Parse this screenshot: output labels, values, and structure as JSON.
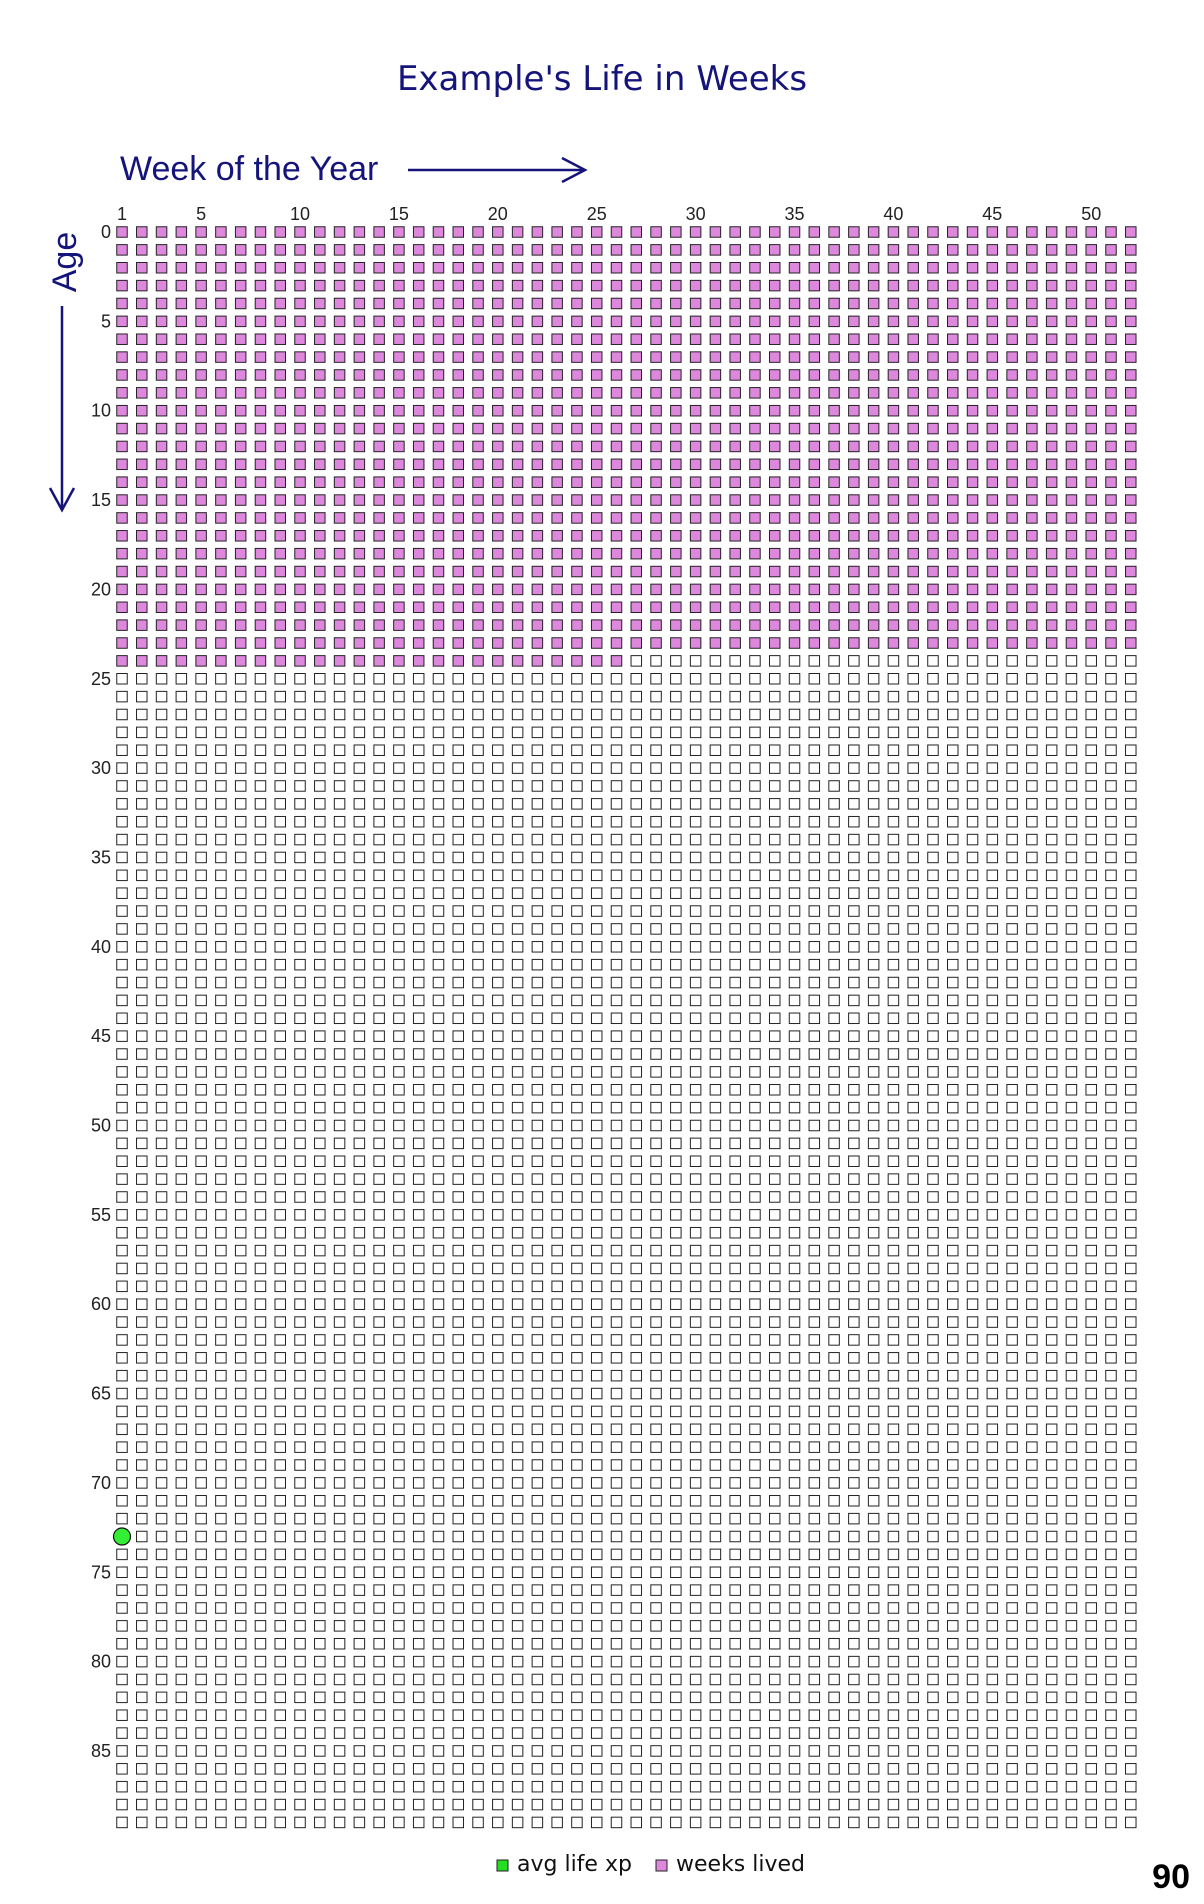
{
  "chart_data": {
    "type": "heatmap",
    "title": "Example's Life in Weeks",
    "xlabel": "Week of the Year",
    "ylabel": "Age",
    "x_ticks": [
      "1",
      "5",
      "10",
      "15",
      "20",
      "25",
      "30",
      "35",
      "40",
      "45",
      "50"
    ],
    "y_ticks": [
      "0",
      "5",
      "10",
      "15",
      "20",
      "25",
      "30",
      "35",
      "40",
      "45",
      "50",
      "55",
      "60",
      "65",
      "70",
      "75",
      "80",
      "85"
    ],
    "weeks_per_year": 52,
    "years": 90,
    "weeks_lived": {
      "full_years": 24,
      "extra_weeks": 26
    },
    "avg_life_expectancy_marker": {
      "age": 73,
      "week": 1
    },
    "corner_label": "90",
    "legend": [
      {
        "label": "avg life xp",
        "color": "#22dd22"
      },
      {
        "label": "weeks lived",
        "color": "#dd88dd"
      }
    ],
    "colors": {
      "lived_fill": "#dd88dd",
      "empty_fill": "#ffffff",
      "box_stroke": "#222222",
      "marker_fill": "#33ee33",
      "accent": "#14147a"
    }
  }
}
